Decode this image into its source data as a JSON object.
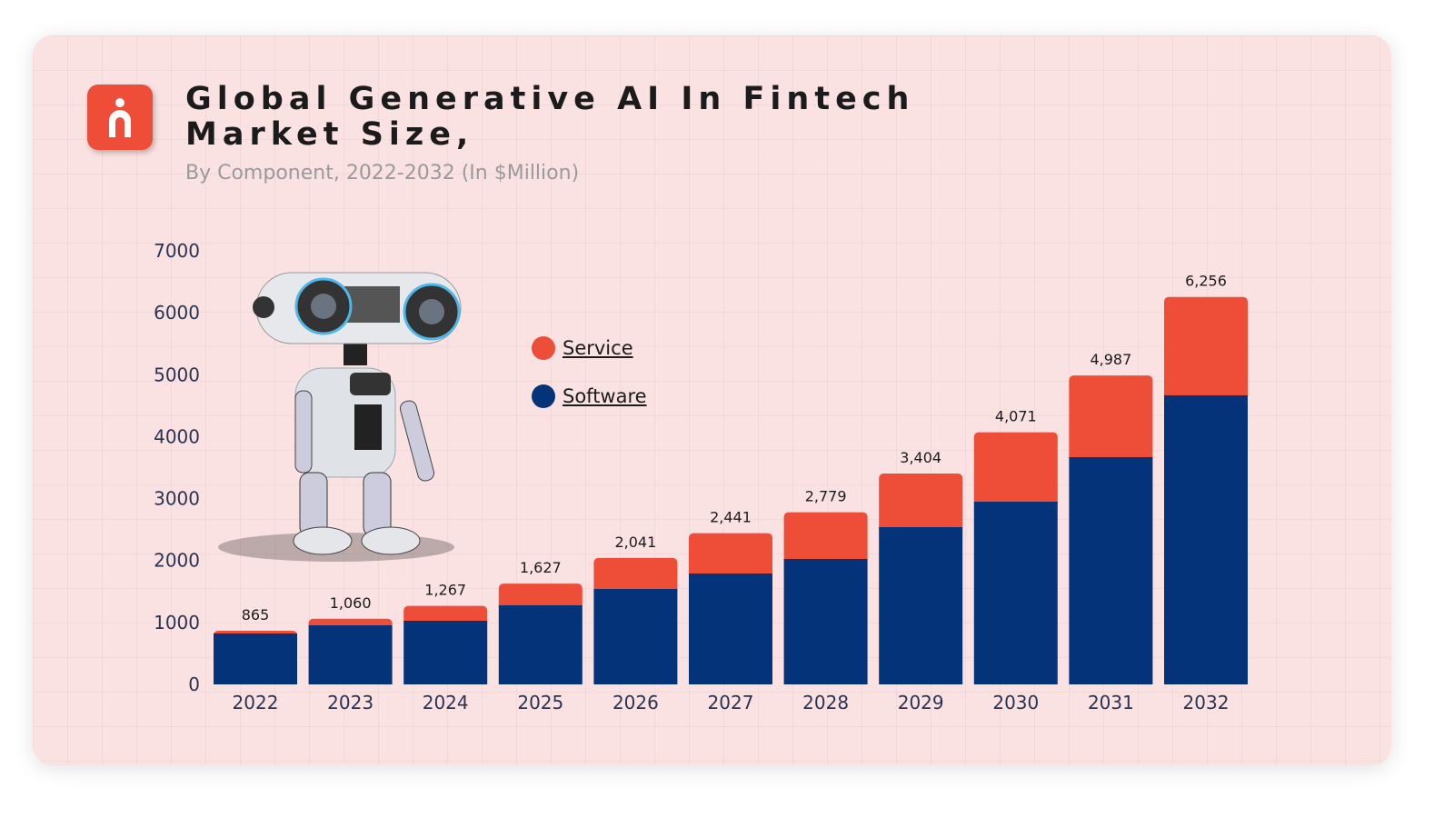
{
  "header": {
    "title_line1": "Global Generative AI In Fintech",
    "title_line2": "Market Size,",
    "subtitle": "By Component, 2022-2032 (In $Million)",
    "logo_icon": "person-letter-n-icon",
    "logo_color": "#ee4e38"
  },
  "chart_data": {
    "type": "bar",
    "stacked": true,
    "title": "Global Generative AI In Fintech Market Size,",
    "subtitle": "By Component, 2022-2032 (In $Million)",
    "categories": [
      "2022",
      "2023",
      "2024",
      "2025",
      "2026",
      "2027",
      "2028",
      "2029",
      "2030",
      "2031",
      "2032"
    ],
    "series": [
      {
        "name": "Software",
        "color": "#04337a",
        "values": [
          734,
          866,
          939,
          1189,
          1453,
          1702,
          1937,
          2451,
          2862,
          3581,
          4579
        ]
      },
      {
        "name": "Service",
        "color": "#ee4e38",
        "values": [
          131,
          194,
          328,
          438,
          588,
          739,
          842,
          953,
          1209,
          1406,
          1677
        ]
      }
    ],
    "totals": [
      865,
      1060,
      1267,
      1627,
      2041,
      2441,
      2779,
      3404,
      4071,
      4987,
      6256
    ],
    "total_labels": [
      "865",
      "1,060",
      "1,267",
      "1,627",
      "2,041",
      "2,441",
      "2,779",
      "3,404",
      "4,071",
      "4,987",
      "6,256"
    ],
    "ylim": [
      0,
      7000
    ],
    "yticks": [
      "0",
      "1000",
      "2000",
      "3000",
      "4000",
      "5000",
      "6000",
      "7000"
    ],
    "grid": false,
    "legend_placement": "top-left",
    "xlabel": "",
    "ylabel": ""
  },
  "legend": [
    {
      "label": "Service",
      "color": "#ee4e38"
    },
    {
      "label": "Software",
      "color": "#04337a"
    }
  ]
}
